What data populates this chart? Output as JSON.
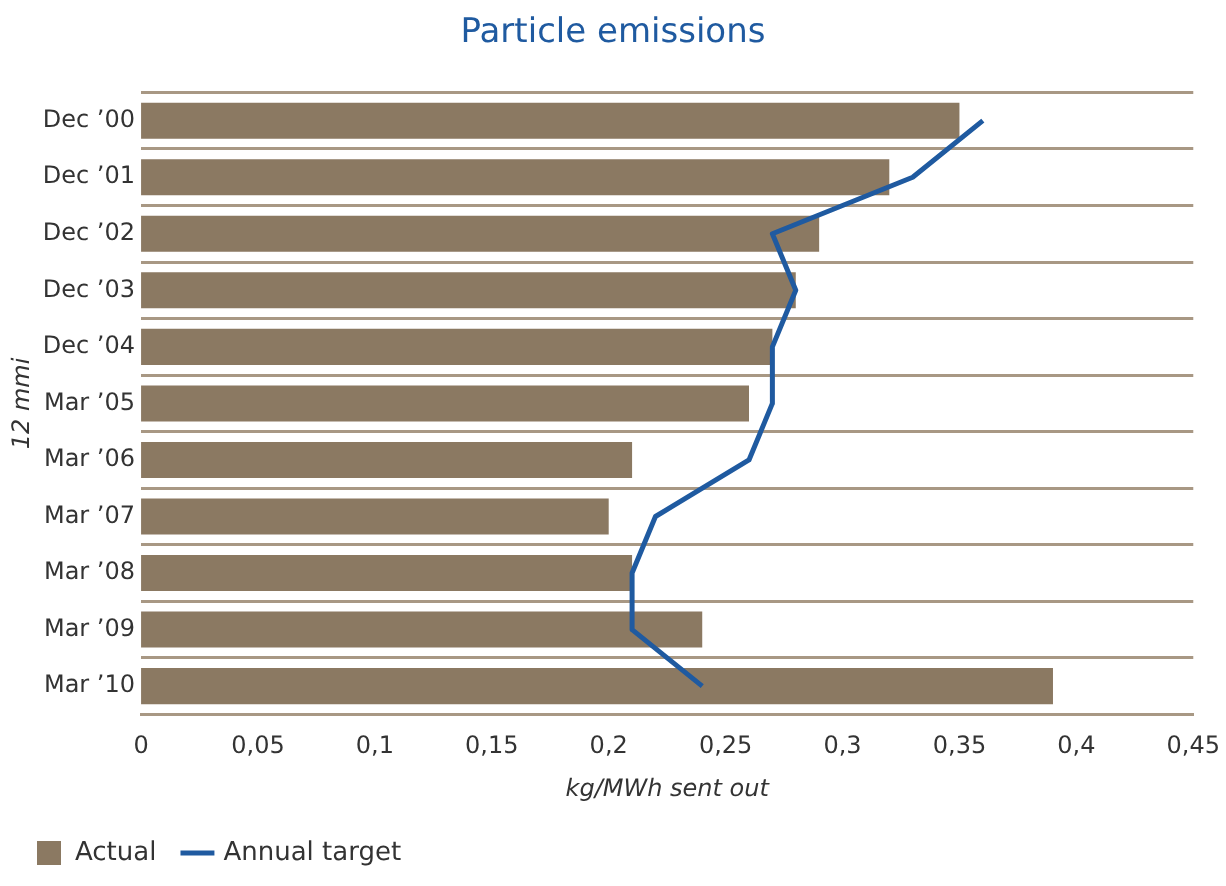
{
  "chart_data": {
    "type": "bar",
    "orientation": "horizontal",
    "title": "Particle emissions",
    "xlabel": "kg/MWh sent out",
    "ylabel": "12 mmi",
    "categories": [
      "Dec ’00",
      "Dec ’01",
      "Dec ’02",
      "Dec ’03",
      "Dec ’04",
      "Mar ’05",
      "Mar ’06",
      "Mar ’07",
      "Mar ’08",
      "Mar ’09",
      "Mar ’10"
    ],
    "series": [
      {
        "name": "Actual",
        "color": "#8b7962",
        "values": [
          0.35,
          0.32,
          0.29,
          0.28,
          0.27,
          0.26,
          0.21,
          0.2,
          0.21,
          0.24,
          0.39
        ]
      },
      {
        "name": "Annual target",
        "type": "line",
        "color": "#1f5aa0",
        "values": [
          0.36,
          0.33,
          0.27,
          0.28,
          0.27,
          0.27,
          0.26,
          0.22,
          0.21,
          0.21,
          0.24
        ]
      }
    ],
    "xlim": [
      0,
      0.45
    ],
    "xticks": [
      0,
      {
        "value": 0.05,
        "label": "0,05"
      },
      {
        "value": 0.1,
        "label": "0,1"
      },
      {
        "value": 0.15,
        "label": "0,15"
      },
      {
        "value": 0.2,
        "label": "0,2"
      },
      {
        "value": 0.25,
        "label": "0,25"
      },
      {
        "value": 0.3,
        "label": "0,3"
      },
      {
        "value": 0.35,
        "label": "0,35"
      },
      {
        "value": 0.4,
        "label": "0,4"
      },
      {
        "value": 0.45,
        "label": "0,45"
      }
    ],
    "grid": "y",
    "legend": "bottom left",
    "marker": "none",
    "line_style": "solid"
  }
}
